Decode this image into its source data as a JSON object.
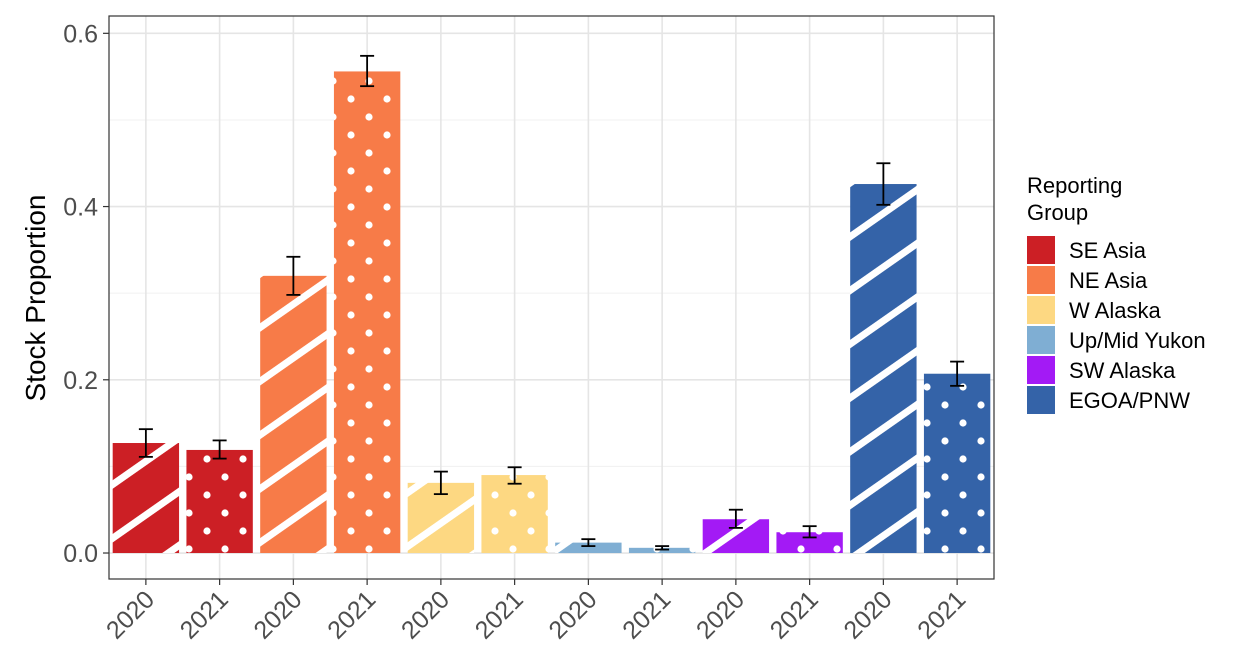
{
  "chart_data": {
    "type": "bar",
    "ylabel": "Stock Proportion",
    "xlabel": "",
    "ylim": [
      -0.03,
      0.62
    ],
    "yticks": [
      "0.0",
      "0.2",
      "0.4",
      "0.6"
    ],
    "grid": true,
    "legend": {
      "title_line1": "Reporting",
      "title_line2": "Group",
      "placement": "right",
      "items": [
        {
          "label": "SE Asia",
          "color": "#CC1F25"
        },
        {
          "label": "NE Asia",
          "color": "#F77B48"
        },
        {
          "label": "W Alaska",
          "color": "#FDD882"
        },
        {
          "label": "Up/Mid Yukon",
          "color": "#7FAED3"
        },
        {
          "label": "SW Alaska",
          "color": "#A31AF5"
        },
        {
          "label": "EGOA/PNW",
          "color": "#3463A8"
        }
      ]
    },
    "bars": [
      {
        "x": "2020",
        "group": "SE Asia",
        "value": 0.127,
        "lower": 0.111,
        "upper": 0.143,
        "pattern": "stripe"
      },
      {
        "x": "2021",
        "group": "SE Asia",
        "value": 0.119,
        "lower": 0.109,
        "upper": 0.13,
        "pattern": "dots"
      },
      {
        "x": "2020",
        "group": "NE Asia",
        "value": 0.32,
        "lower": 0.298,
        "upper": 0.342,
        "pattern": "stripe"
      },
      {
        "x": "2021",
        "group": "NE Asia",
        "value": 0.556,
        "lower": 0.539,
        "upper": 0.574,
        "pattern": "dots"
      },
      {
        "x": "2020",
        "group": "W Alaska",
        "value": 0.081,
        "lower": 0.068,
        "upper": 0.094,
        "pattern": "stripe"
      },
      {
        "x": "2021",
        "group": "W Alaska",
        "value": 0.09,
        "lower": 0.08,
        "upper": 0.099,
        "pattern": "dots"
      },
      {
        "x": "2020",
        "group": "Up/Mid Yukon",
        "value": 0.012,
        "lower": 0.008,
        "upper": 0.016,
        "pattern": "stripe"
      },
      {
        "x": "2021",
        "group": "Up/Mid Yukon",
        "value": 0.006,
        "lower": 0.004,
        "upper": 0.008,
        "pattern": "dots"
      },
      {
        "x": "2020",
        "group": "SW Alaska",
        "value": 0.039,
        "lower": 0.029,
        "upper": 0.05,
        "pattern": "stripe"
      },
      {
        "x": "2021",
        "group": "SW Alaska",
        "value": 0.024,
        "lower": 0.018,
        "upper": 0.031,
        "pattern": "dots"
      },
      {
        "x": "2020",
        "group": "EGOA/PNW",
        "value": 0.426,
        "lower": 0.402,
        "upper": 0.45,
        "pattern": "stripe"
      },
      {
        "x": "2021",
        "group": "EGOA/PNW",
        "value": 0.207,
        "lower": 0.193,
        "upper": 0.221,
        "pattern": "dots"
      }
    ]
  }
}
